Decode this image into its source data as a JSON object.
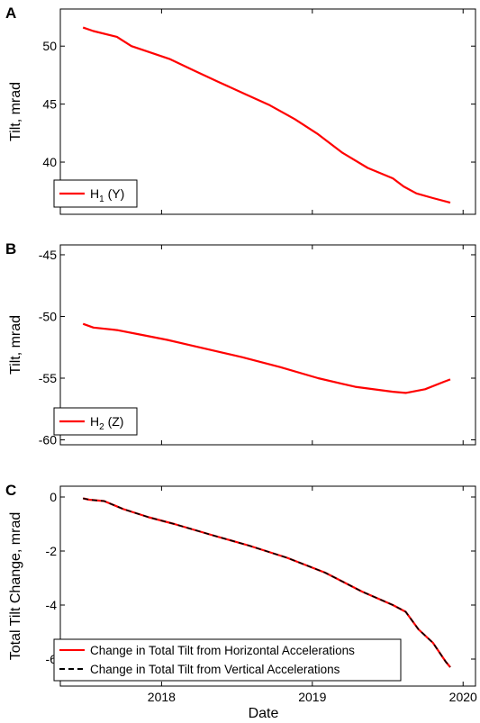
{
  "chart_data": [
    {
      "type": "line",
      "panel_label": "A",
      "title": "",
      "xlabel": "",
      "ylabel": "Tilt, mrad",
      "x_tick_labels": [
        "2018",
        "2019",
        "2020"
      ],
      "x_ticks": [
        "2018-01-01",
        "2019-01-01",
        "2020-01-01"
      ],
      "xlim": [
        "2017-05-01",
        "2020-01-31"
      ],
      "ylim": [
        35.5,
        53.2
      ],
      "y_ticks": [
        40,
        45,
        50
      ],
      "grid": false,
      "legend": {
        "position": "bottom-left",
        "main": "H",
        "sub": "1",
        "suffix": " (Y)"
      },
      "series": [
        {
          "name": "H1 (Y)",
          "color": "#ff0000",
          "style": "solid",
          "x": [
            "2017-06-25",
            "2017-07-20",
            "2017-09-15",
            "2017-10-20",
            "2017-12-01",
            "2018-01-20",
            "2018-03-20",
            "2018-05-20",
            "2018-07-20",
            "2018-09-20",
            "2018-11-20",
            "2019-01-15",
            "2019-03-15",
            "2019-05-15",
            "2019-07-15",
            "2019-08-10",
            "2019-09-10",
            "2019-10-20",
            "2019-12-01"
          ],
          "values": [
            51.6,
            51.3,
            50.8,
            50.0,
            49.5,
            48.9,
            47.9,
            46.9,
            45.9,
            44.9,
            43.7,
            42.4,
            40.8,
            39.5,
            38.6,
            37.9,
            37.3,
            36.9,
            36.5
          ]
        }
      ]
    },
    {
      "type": "line",
      "panel_label": "B",
      "title": "",
      "xlabel": "",
      "ylabel": "Tilt, mrad",
      "x_tick_labels": [
        "2018",
        "2019",
        "2020"
      ],
      "x_ticks": [
        "2018-01-01",
        "2019-01-01",
        "2020-01-01"
      ],
      "xlim": [
        "2017-05-01",
        "2020-01-31"
      ],
      "ylim": [
        -60.4,
        -44.2
      ],
      "y_ticks": [
        -60,
        -55,
        -50,
        -45
      ],
      "y_tick_labels": [
        "-60",
        "-55",
        "-50",
        "-45"
      ],
      "grid": false,
      "legend": {
        "position": "bottom-left",
        "main": "H",
        "sub": "2",
        "suffix": " (Z)"
      },
      "series": [
        {
          "name": "H2 (Z)",
          "color": "#ff0000",
          "style": "solid",
          "x": [
            "2017-06-25",
            "2017-07-20",
            "2017-09-15",
            "2017-11-15",
            "2018-01-15",
            "2018-04-15",
            "2018-07-15",
            "2018-10-15",
            "2019-01-15",
            "2019-04-15",
            "2019-07-15",
            "2019-08-15",
            "2019-10-01",
            "2019-11-15",
            "2019-12-01"
          ],
          "values": [
            -50.6,
            -50.9,
            -51.1,
            -51.5,
            -51.9,
            -52.6,
            -53.3,
            -54.1,
            -55.0,
            -55.7,
            -56.1,
            -56.2,
            -55.9,
            -55.3,
            -55.1
          ]
        }
      ]
    },
    {
      "type": "line",
      "panel_label": "C",
      "title": "",
      "xlabel": "Date",
      "ylabel": "Total Tilt Change, mrad",
      "x_tick_labels": [
        "2018",
        "2019",
        "2020"
      ],
      "x_ticks": [
        "2018-01-01",
        "2019-01-01",
        "2020-01-01"
      ],
      "xlim": [
        "2017-05-01",
        "2020-01-31"
      ],
      "ylim": [
        -7.0,
        0.4
      ],
      "y_ticks": [
        -6,
        -4,
        -2,
        0
      ],
      "y_tick_labels": [
        "-6",
        "-4",
        "-2",
        "0"
      ],
      "grid": false,
      "legend": {
        "position": "bottom-left"
      },
      "series": [
        {
          "name": "Change in Total Tilt from Horizontal Accelerations",
          "color": "#ff0000",
          "style": "solid",
          "x": [
            "2017-06-25",
            "2017-07-10",
            "2017-08-15",
            "2017-10-01",
            "2017-12-01",
            "2018-02-01",
            "2018-05-01",
            "2018-08-01",
            "2018-11-01",
            "2019-02-01",
            "2019-05-01",
            "2019-07-15",
            "2019-08-15",
            "2019-09-15",
            "2019-10-20",
            "2019-11-20",
            "2019-12-01"
          ],
          "values": [
            -0.05,
            -0.1,
            -0.15,
            -0.45,
            -0.75,
            -1.0,
            -1.4,
            -1.8,
            -2.25,
            -2.8,
            -3.5,
            -4.0,
            -4.25,
            -4.9,
            -5.4,
            -6.1,
            -6.3
          ]
        },
        {
          "name": "Change in Total Tilt from Vertical Accelerations",
          "color": "#000000",
          "style": "dashed",
          "x": [
            "2017-06-25",
            "2017-07-10",
            "2017-08-15",
            "2017-10-01",
            "2017-12-01",
            "2018-02-01",
            "2018-05-01",
            "2018-08-01",
            "2018-11-01",
            "2019-02-01",
            "2019-05-01",
            "2019-07-15",
            "2019-08-15",
            "2019-09-15",
            "2019-10-20",
            "2019-11-20",
            "2019-12-01"
          ],
          "values": [
            -0.05,
            -0.1,
            -0.15,
            -0.45,
            -0.75,
            -1.0,
            -1.4,
            -1.8,
            -2.25,
            -2.8,
            -3.5,
            -4.0,
            -4.25,
            -4.9,
            -5.4,
            -6.1,
            -6.3
          ]
        }
      ]
    }
  ]
}
